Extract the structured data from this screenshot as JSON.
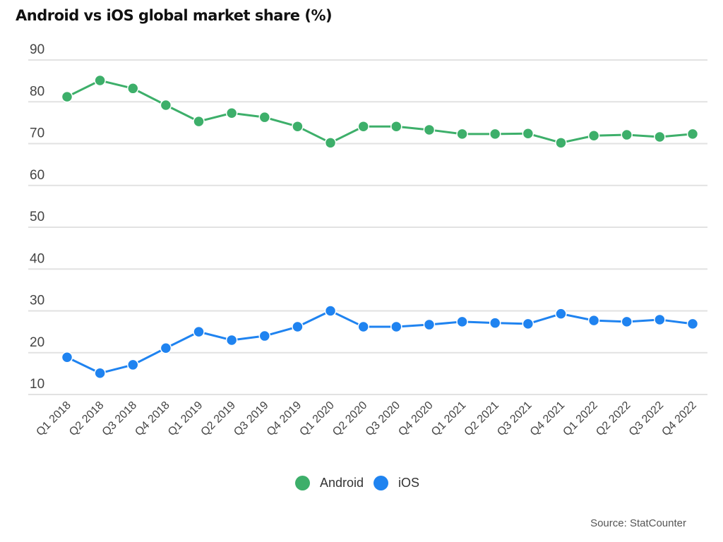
{
  "chart_data": {
    "type": "line",
    "title": "Android vs iOS global market share (%)",
    "xlabel": "",
    "ylabel": "",
    "ylim": [
      10,
      90
    ],
    "yticks": [
      90,
      80,
      70,
      60,
      50,
      40,
      30,
      20,
      10
    ],
    "grid": true,
    "legend_position": "bottom-center",
    "categories": [
      "Q1 2018",
      "Q2 2018",
      "Q3 2018",
      "Q4 2018",
      "Q1 2019",
      "Q2 2019",
      "Q3 2019",
      "Q4 2019",
      "Q1 2020",
      "Q2 2020",
      "Q3 2020",
      "Q4 2020",
      "Q1 2021",
      "Q2 2021",
      "Q3 2021",
      "Q4 2021",
      "Q1 2022",
      "Q2 2022",
      "Q3 2022",
      "Q4 2022"
    ],
    "series": [
      {
        "name": "Android",
        "color": "#3daf6a",
        "values": [
          81.2,
          85.1,
          83.2,
          79.2,
          75.3,
          77.3,
          76.3,
          74.1,
          70.2,
          74.1,
          74.1,
          73.3,
          72.3,
          72.3,
          72.4,
          70.2,
          71.9,
          72.1,
          71.6,
          72.3
        ]
      },
      {
        "name": "iOS",
        "color": "#1f83f0",
        "values": [
          18.9,
          15.1,
          17.1,
          21.1,
          25.0,
          23.0,
          24.0,
          26.2,
          30.0,
          26.2,
          26.2,
          26.7,
          27.4,
          27.1,
          26.9,
          29.3,
          27.7,
          27.4,
          27.9,
          26.9
        ]
      }
    ],
    "source": "Source: StatCounter"
  }
}
